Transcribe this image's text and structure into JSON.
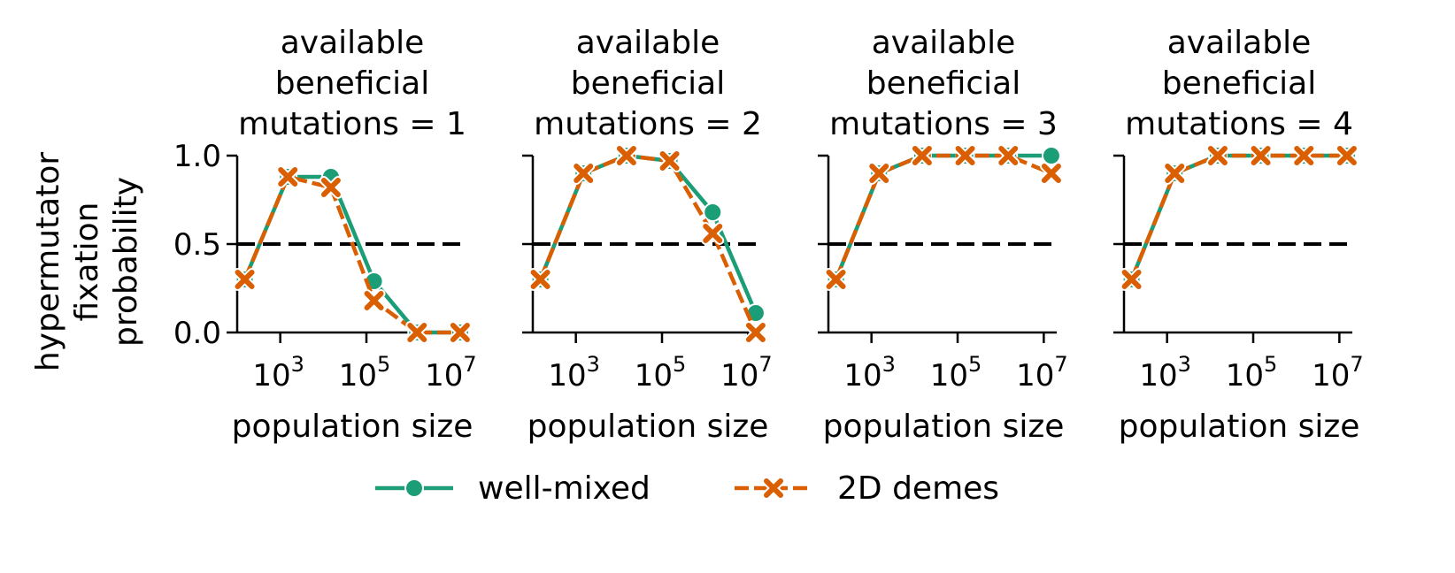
{
  "figure": {
    "ylabel": [
      "hypermutator",
      "fixation",
      "probability"
    ],
    "xlabel": "population size",
    "legend": [
      {
        "name": "well-mixed",
        "color": "#1b9e77",
        "marker": "circle",
        "linestyle": "solid"
      },
      {
        "name": "2D demes",
        "color": "#d95f02",
        "marker": "x",
        "linestyle": "dashed"
      }
    ]
  },
  "chart_data": [
    {
      "type": "line",
      "title": [
        "available",
        "beneficial",
        "mutations = 1"
      ],
      "xlabel": "population size",
      "xscale": "log",
      "xlim": [
        100,
        20000000
      ],
      "ylim": [
        0,
        1
      ],
      "yticks": [
        "0.0",
        "0.5",
        "1.0"
      ],
      "xticks": [
        {
          "base": "10",
          "exp": "3",
          "value": 1000
        },
        {
          "base": "10",
          "exp": "5",
          "value": 100000
        },
        {
          "base": "10",
          "exp": "7",
          "value": 10000000
        }
      ],
      "hline": 0.5,
      "series": [
        {
          "name": "well-mixed",
          "x": [
            150,
            1500,
            15000,
            150000,
            1500000,
            15000000
          ],
          "y": [
            0.3,
            0.88,
            0.88,
            0.29,
            0.0,
            0.0
          ]
        },
        {
          "name": "2D demes",
          "x": [
            150,
            1500,
            15000,
            150000,
            1500000,
            15000000
          ],
          "y": [
            0.3,
            0.88,
            0.82,
            0.18,
            0.0,
            0.0
          ]
        }
      ]
    },
    {
      "type": "line",
      "title": [
        "available",
        "beneficial",
        "mutations = 2"
      ],
      "xlabel": "population size",
      "xscale": "log",
      "xlim": [
        100,
        20000000
      ],
      "ylim": [
        0,
        1
      ],
      "yticks": [
        "",
        "",
        ""
      ],
      "xticks": [
        {
          "base": "10",
          "exp": "3",
          "value": 1000
        },
        {
          "base": "10",
          "exp": "5",
          "value": 100000
        },
        {
          "base": "10",
          "exp": "7",
          "value": 10000000
        }
      ],
      "hline": 0.5,
      "series": [
        {
          "name": "well-mixed",
          "x": [
            150,
            1500,
            15000,
            150000,
            1500000,
            15000000
          ],
          "y": [
            0.3,
            0.9,
            1.0,
            0.97,
            0.68,
            0.11
          ]
        },
        {
          "name": "2D demes",
          "x": [
            150,
            1500,
            15000,
            150000,
            1500000,
            15000000
          ],
          "y": [
            0.3,
            0.9,
            1.0,
            0.97,
            0.56,
            0.0
          ]
        }
      ]
    },
    {
      "type": "line",
      "title": [
        "available",
        "beneficial",
        "mutations = 3"
      ],
      "xlabel": "population size",
      "xscale": "log",
      "xlim": [
        100,
        20000000
      ],
      "ylim": [
        0,
        1
      ],
      "yticks": [
        "",
        "",
        ""
      ],
      "xticks": [
        {
          "base": "10",
          "exp": "3",
          "value": 1000
        },
        {
          "base": "10",
          "exp": "5",
          "value": 100000
        },
        {
          "base": "10",
          "exp": "7",
          "value": 10000000
        }
      ],
      "hline": 0.5,
      "series": [
        {
          "name": "well-mixed",
          "x": [
            150,
            1500,
            15000,
            150000,
            1500000,
            15000000
          ],
          "y": [
            0.3,
            0.9,
            1.0,
            1.0,
            1.0,
            1.0
          ]
        },
        {
          "name": "2D demes",
          "x": [
            150,
            1500,
            15000,
            150000,
            1500000,
            15000000
          ],
          "y": [
            0.3,
            0.9,
            1.0,
            1.0,
            1.0,
            0.9
          ]
        }
      ]
    },
    {
      "type": "line",
      "title": [
        "available",
        "beneficial",
        "mutations = 4"
      ],
      "xlabel": "population size",
      "xscale": "log",
      "xlim": [
        100,
        20000000
      ],
      "ylim": [
        0,
        1
      ],
      "yticks": [
        "",
        "",
        ""
      ],
      "xticks": [
        {
          "base": "10",
          "exp": "3",
          "value": 1000
        },
        {
          "base": "10",
          "exp": "5",
          "value": 100000
        },
        {
          "base": "10",
          "exp": "7",
          "value": 10000000
        }
      ],
      "hline": 0.5,
      "series": [
        {
          "name": "well-mixed",
          "x": [
            150,
            1500,
            15000,
            150000,
            1500000,
            15000000
          ],
          "y": [
            0.3,
            0.9,
            1.0,
            1.0,
            1.0,
            1.0
          ]
        },
        {
          "name": "2D demes",
          "x": [
            150,
            1500,
            15000,
            150000,
            1500000,
            15000000
          ],
          "y": [
            0.3,
            0.9,
            1.0,
            1.0,
            1.0,
            1.0
          ]
        }
      ]
    }
  ]
}
